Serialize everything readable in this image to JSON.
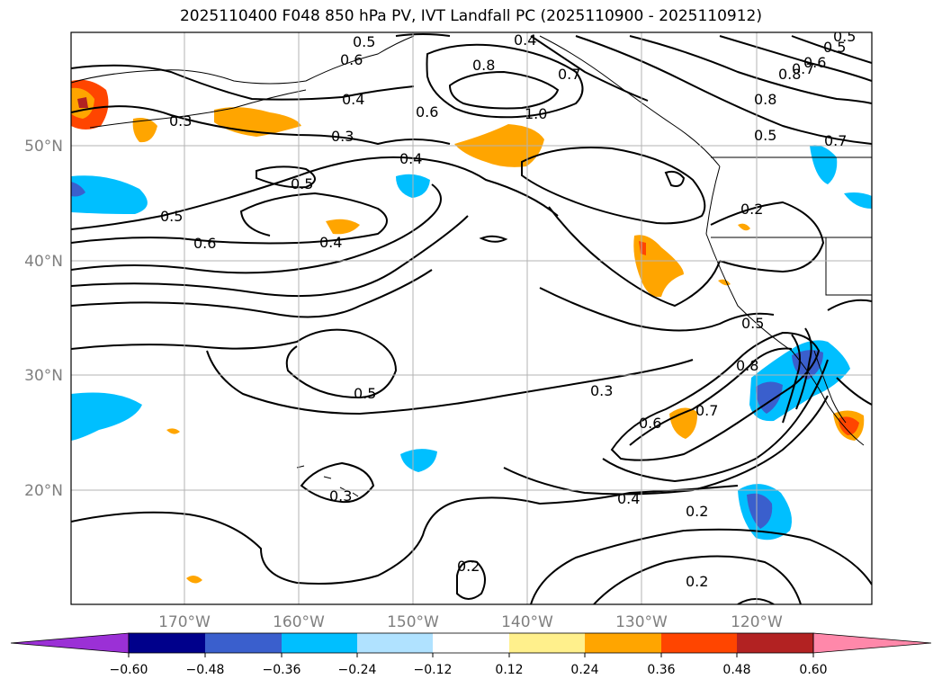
{
  "title": "2025110400 F048 850 hPa PV, IVT Landfall PC (2025110900 - 2025110912)",
  "lat_labels": [
    "50°N",
    "40°N",
    "30°N",
    "20°N"
  ],
  "lon_labels": [
    "170°W",
    "160°W",
    "150°W",
    "140°W",
    "130°W",
    "120°W"
  ],
  "colorbar": {
    "ticks": [
      "−0.60",
      "−0.48",
      "−0.36",
      "−0.24",
      "−0.12",
      "0.12",
      "0.24",
      "0.36",
      "0.48",
      "0.60"
    ],
    "colors": [
      "#9b30d6",
      "#00008b",
      "#3a5fcd",
      "#00bfff",
      "#b0e2ff",
      "#ffffff",
      "#fff08c",
      "#ffa500",
      "#ff4500",
      "#b22222",
      "#ff88aa"
    ]
  },
  "contour_labels": [
    "0.5",
    "0.6",
    "0.4",
    "0.5",
    "0.8",
    "0.7",
    "1.0",
    "0.6",
    "0.4",
    "0.3",
    "0.3",
    "0.5",
    "0.4",
    "0.5",
    "0.6",
    "0.4",
    "0.8",
    "0.7",
    "0.6",
    "0.5",
    "0.7",
    "0.8",
    "0.2",
    "0.5",
    "0.8",
    "0.7",
    "0.6",
    "0.3",
    "0.5",
    "0.4",
    "0.2",
    "0.2",
    "0.2",
    "0.3",
    "0.5"
  ]
}
